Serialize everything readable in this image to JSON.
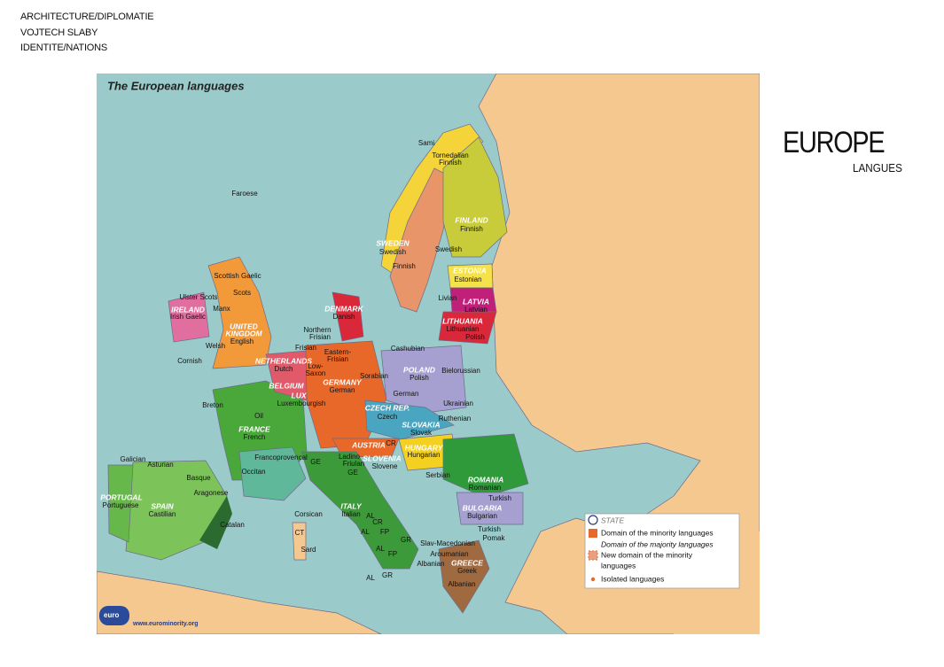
{
  "header": {
    "lines": [
      "ARCHITECTURE/DIPLOMATIE",
      "VOJTECH SLABY",
      "IDENTITE/NATIONS"
    ]
  },
  "heading": {
    "title": "EUROPE",
    "subtitle": "LANGUES"
  },
  "map": {
    "title": "The European languages",
    "labels": [
      "Sami",
      "Tornedalian",
      "Finnish",
      "Faroese",
      "FINLAND",
      "Finnish",
      "SWEDEN",
      "Swedish",
      "Swedish",
      "Finnish",
      "ESTONIA",
      "Estonian",
      "Scottish Gaelic",
      "Scots",
      "Ulster Scots",
      "IRELAND",
      "Irish Gaelic",
      "Manx",
      "DENMARK",
      "Danish",
      "Livian",
      "LATVIA",
      "Latvian",
      "LITHUANIA",
      "Lithuanian",
      "Polish",
      "UNITED",
      "KINGDOM",
      "English",
      "Northern",
      "Frisian",
      "Welsh",
      "Frisian",
      "Cashubian",
      "Eastern-",
      "Frisian",
      "NETHERLANDS",
      "Dutch",
      "Low-",
      "Saxon",
      "Cornish",
      "POLAND",
      "Polish",
      "Bielorussian",
      "Sorabian",
      "BELGIUM",
      "GERMANY",
      "German",
      "LUX",
      "German",
      "Luxembourgish",
      "Ukrainian",
      "CZECH REP.",
      "Czech",
      "Breton",
      "Oil",
      "Ruthenian",
      "SLOVAKIA",
      "Slovak",
      "FRANCE",
      "French",
      "HUNGARY",
      "Hungarian",
      "AUSTRIA",
      "CR",
      "Galician",
      "Asturian",
      "Francoprovencal",
      "Ladino",
      "Friulan",
      "SLOVENIA",
      "Slovene",
      "GE",
      "GE",
      "Occitan",
      "Serbian",
      "ROMANIA",
      "Romanian",
      "Basque",
      "PORTUGAL",
      "Portuguese",
      "Aragonese",
      "SPAIN",
      "Castilian",
      "Turkish",
      "BULGARIA",
      "Bulgarian",
      "ITALY",
      "Italian",
      "Corsican",
      "AL",
      "CR",
      "AL",
      "FP",
      "Catalan",
      "CT",
      "GR",
      "Turkish",
      "Pomak",
      "Slav-Macedonian",
      "Sard",
      "AL",
      "FP",
      "Aroumanian",
      "Albanian",
      "GREECE",
      "Greek",
      "AL",
      "GR",
      "Albanian"
    ],
    "legend": [
      "STATE",
      "Domain of the minority languages",
      "Domain of the majority languages",
      "New domain of the minority",
      "languages",
      "Isolated languages"
    ],
    "credits": [
      "euro",
      "www.eurominority.org"
    ]
  }
}
